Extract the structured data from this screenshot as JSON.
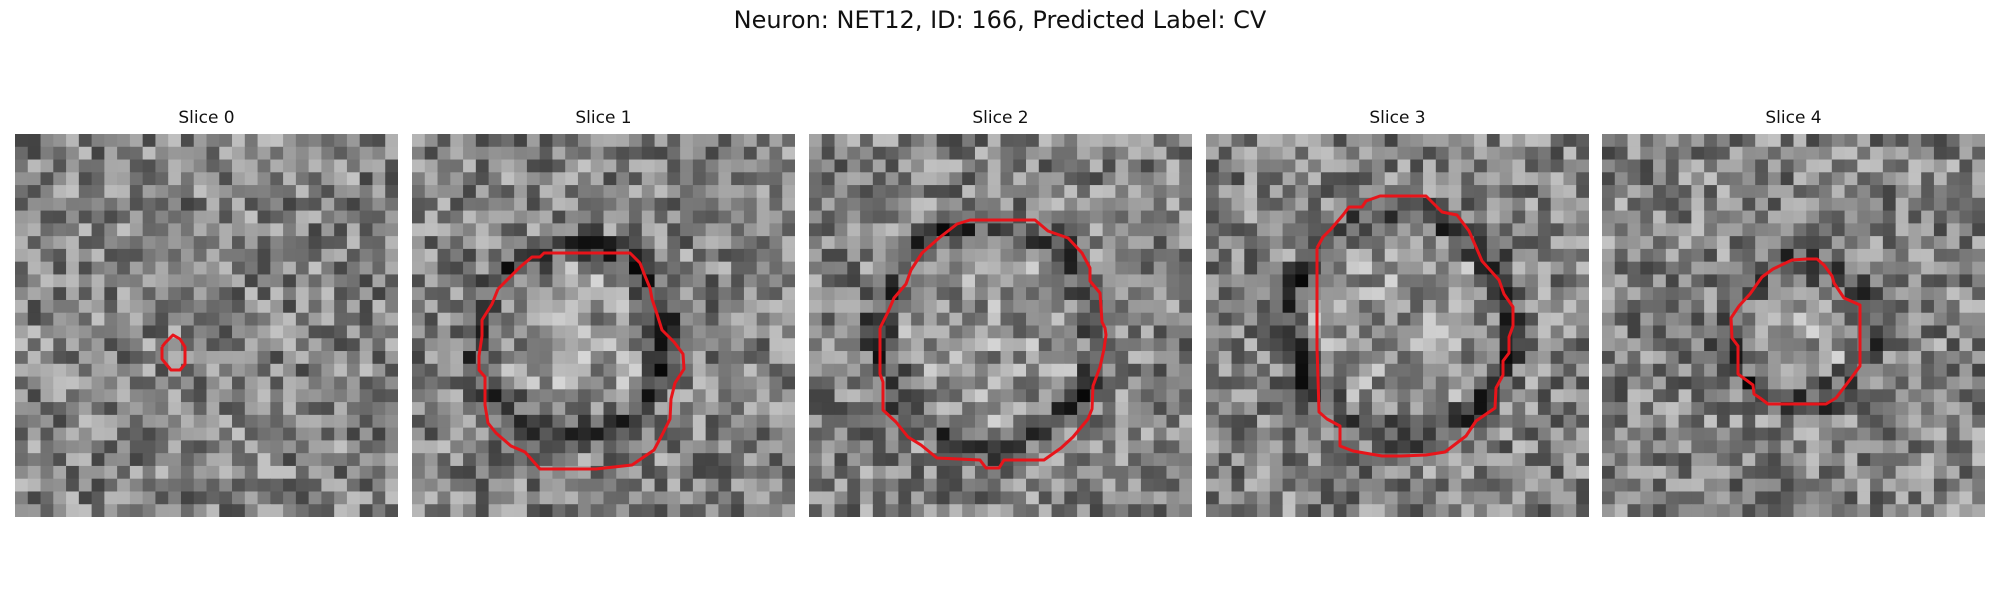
{
  "figure": {
    "title": "Neuron: NET12, ID: 166, Predicted Label: CV"
  },
  "colors": {
    "contour": "#e8141a",
    "background": "#ffffff"
  },
  "panels": [
    {
      "title": "Slice 0"
    },
    {
      "title": "Slice 1"
    },
    {
      "title": "Slice 2"
    },
    {
      "title": "Slice 3"
    },
    {
      "title": "Slice 4"
    }
  ]
}
